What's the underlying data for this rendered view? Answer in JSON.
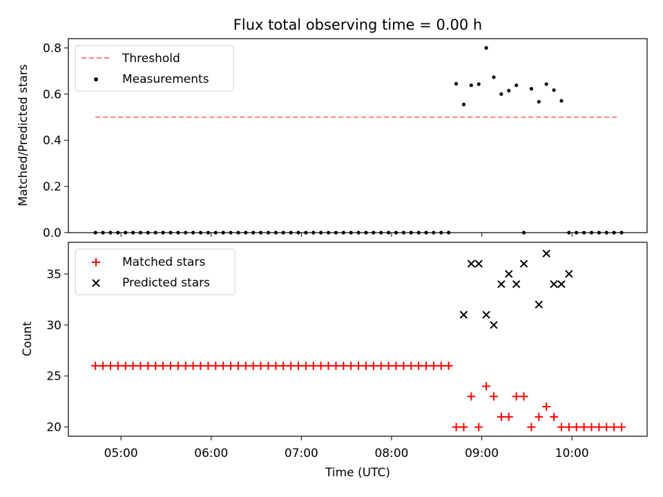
{
  "chart_data": [
    {
      "type": "scatter",
      "title": "Flux total observing time = 0.00 h",
      "xlabel": "",
      "ylabel": "Matched/Predicted stars",
      "xlim": [
        "04:25",
        "10:50"
      ],
      "ylim": [
        0,
        0.84
      ],
      "yticks": [
        "0.0",
        "0.2",
        "0.4",
        "0.6",
        "0.8"
      ],
      "ytick_values": [
        0,
        0.2,
        0.4,
        0.6,
        0.8
      ],
      "grid": false,
      "legend_position": "upper-left",
      "series": [
        {
          "name": "Threshold",
          "kind": "dashed-line",
          "color": "#ff7f7f",
          "x": [
            "04:43",
            "10:31"
          ],
          "values": [
            0.5,
            0.5
          ]
        },
        {
          "name": "Measurements",
          "kind": "dot",
          "color": "#000000",
          "x": [
            "04:43",
            "04:48",
            "04:53",
            "04:58",
            "05:03",
            "05:08",
            "05:13",
            "05:18",
            "05:23",
            "05:28",
            "05:33",
            "05:38",
            "05:43",
            "05:48",
            "05:53",
            "05:58",
            "06:03",
            "06:08",
            "06:13",
            "06:18",
            "06:23",
            "06:28",
            "06:33",
            "06:38",
            "06:43",
            "06:48",
            "06:53",
            "06:58",
            "07:03",
            "07:08",
            "07:13",
            "07:18",
            "07:23",
            "07:28",
            "07:33",
            "07:38",
            "07:43",
            "07:48",
            "07:53",
            "07:58",
            "08:03",
            "08:08",
            "08:13",
            "08:18",
            "08:23",
            "08:28",
            "08:33",
            "08:38",
            "08:43",
            "08:48",
            "08:53",
            "08:58",
            "09:03",
            "09:08",
            "09:13",
            "09:18",
            "09:23",
            "09:28",
            "09:33",
            "09:38",
            "09:43",
            "09:48",
            "09:53",
            "09:58",
            "10:03",
            "10:08",
            "10:13",
            "10:18",
            "10:23",
            "10:28",
            "10:33"
          ],
          "values": [
            0,
            0,
            0,
            0,
            0,
            0,
            0,
            0,
            0,
            0,
            0,
            0,
            0,
            0,
            0,
            0,
            0,
            0,
            0,
            0,
            0,
            0,
            0,
            0,
            0,
            0,
            0,
            0,
            0,
            0,
            0,
            0,
            0,
            0,
            0,
            0,
            0,
            0,
            0,
            0,
            0,
            0,
            0,
            0,
            0,
            0,
            0,
            0,
            0.645,
            0.555,
            0.638,
            0.643,
            0.8,
            0.673,
            0.6,
            0.615,
            0.638,
            0,
            0.623,
            0.567,
            0.643,
            0.617,
            0.571,
            0,
            0,
            0,
            0,
            0,
            0,
            0,
            0
          ]
        }
      ]
    },
    {
      "type": "scatter",
      "title": "",
      "xlabel": "Time (UTC)",
      "ylabel": "Count",
      "xlim": [
        "04:25",
        "10:50"
      ],
      "ylim": [
        19.1,
        38.1
      ],
      "xticks": [
        "05:00",
        "06:00",
        "07:00",
        "08:00",
        "09:00",
        "10:00"
      ],
      "yticks": [
        "20",
        "25",
        "30",
        "35"
      ],
      "ytick_values": [
        20,
        25,
        30,
        35
      ],
      "grid": false,
      "legend_position": "upper-left",
      "series": [
        {
          "name": "Matched stars",
          "kind": "plus",
          "color": "#ff0000",
          "x": [
            "04:43",
            "04:48",
            "04:53",
            "04:58",
            "05:03",
            "05:08",
            "05:13",
            "05:18",
            "05:23",
            "05:28",
            "05:33",
            "05:38",
            "05:43",
            "05:48",
            "05:53",
            "05:58",
            "06:03",
            "06:08",
            "06:13",
            "06:18",
            "06:23",
            "06:28",
            "06:33",
            "06:38",
            "06:43",
            "06:48",
            "06:53",
            "06:58",
            "07:03",
            "07:08",
            "07:13",
            "07:18",
            "07:23",
            "07:28",
            "07:33",
            "07:38",
            "07:43",
            "07:48",
            "07:53",
            "07:58",
            "08:03",
            "08:08",
            "08:13",
            "08:18",
            "08:23",
            "08:28",
            "08:33",
            "08:38",
            "08:43",
            "08:48",
            "08:53",
            "08:58",
            "09:03",
            "09:08",
            "09:13",
            "09:18",
            "09:23",
            "09:28",
            "09:33",
            "09:38",
            "09:43",
            "09:48",
            "09:53",
            "09:58",
            "10:03",
            "10:08",
            "10:13",
            "10:18",
            "10:23",
            "10:28",
            "10:33"
          ],
          "values": [
            26,
            26,
            26,
            26,
            26,
            26,
            26,
            26,
            26,
            26,
            26,
            26,
            26,
            26,
            26,
            26,
            26,
            26,
            26,
            26,
            26,
            26,
            26,
            26,
            26,
            26,
            26,
            26,
            26,
            26,
            26,
            26,
            26,
            26,
            26,
            26,
            26,
            26,
            26,
            26,
            26,
            26,
            26,
            26,
            26,
            26,
            26,
            26,
            20,
            20,
            23,
            20,
            24,
            23,
            21,
            21,
            23,
            23,
            20,
            21,
            22,
            21,
            20,
            20,
            20,
            20,
            20,
            20,
            20,
            20,
            20
          ]
        },
        {
          "name": "Predicted stars",
          "kind": "cross",
          "color": "#000000",
          "x": [
            "08:48",
            "08:53",
            "08:58",
            "09:03",
            "09:08",
            "09:13",
            "09:18",
            "09:23",
            "09:28",
            "09:38",
            "09:43",
            "09:48",
            "09:53",
            "09:58"
          ],
          "values": [
            31,
            36,
            36,
            31,
            30,
            34,
            35,
            34,
            36,
            32,
            37,
            34,
            34,
            35
          ]
        }
      ]
    }
  ]
}
